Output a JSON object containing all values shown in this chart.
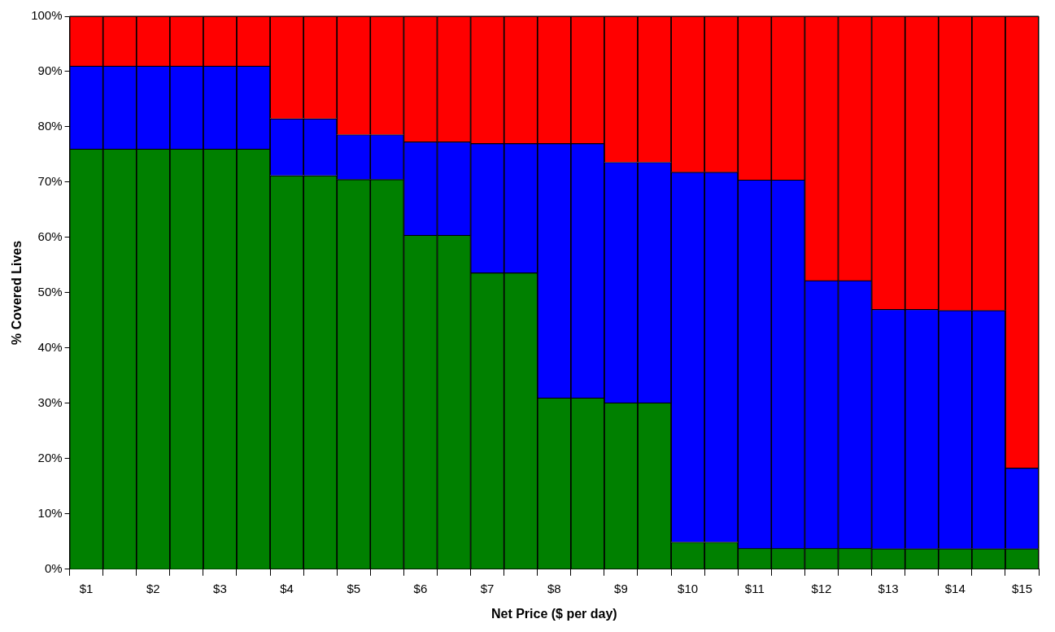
{
  "chart_data": {
    "type": "bar",
    "stacked": true,
    "xlabel": "Net Price ($ per day)",
    "ylabel": "% Covered Lives",
    "categories": [
      "$1",
      null,
      "$2",
      null,
      "$3",
      null,
      "$4",
      null,
      "$5",
      null,
      "$6",
      null,
      "$7",
      null,
      "$8",
      null,
      "$9",
      null,
      "$10",
      null,
      "$11",
      null,
      "$12",
      null,
      "$13",
      null,
      "$14",
      null,
      "$15"
    ],
    "series": [
      {
        "color": "#008000",
        "values": [
          76,
          76,
          76,
          76,
          76,
          76,
          71.2,
          71.2,
          70.5,
          70.5,
          60.4,
          60.4,
          53.6,
          53.6,
          31.0,
          31.0,
          30.1,
          30.1,
          4.9,
          4.9,
          3.8,
          3.8,
          3.8,
          3.8,
          3.7,
          3.7,
          3.7,
          3.7,
          3.7
        ]
      },
      {
        "color": "#0000ff",
        "values": [
          15,
          15,
          15,
          15,
          15,
          15,
          10.3,
          10.3,
          8.1,
          8.1,
          16.9,
          16.9,
          23.4,
          23.4,
          46.0,
          46.0,
          43.5,
          43.5,
          66.9,
          66.9,
          66.6,
          66.6,
          48.4,
          48.4,
          43.3,
          43.3,
          43.1,
          43.1,
          14.6
        ]
      },
      {
        "color": "#ff0000",
        "values": [
          9,
          9,
          9,
          9,
          9,
          9,
          18.5,
          18.5,
          21.4,
          21.4,
          22.7,
          22.7,
          23.0,
          23.0,
          23.0,
          23.0,
          26.4,
          26.4,
          28.2,
          28.2,
          29.6,
          29.6,
          47.8,
          47.8,
          53.0,
          53.0,
          53.2,
          53.2,
          81.7
        ]
      }
    ],
    "ylim": [
      0,
      100
    ],
    "yticks": [
      {
        "value": 0,
        "label": "0%"
      },
      {
        "value": 10,
        "label": "10%"
      },
      {
        "value": 20,
        "label": "20%"
      },
      {
        "value": 30,
        "label": "30%"
      },
      {
        "value": 40,
        "label": "40%"
      },
      {
        "value": 50,
        "label": "50%"
      },
      {
        "value": 60,
        "label": "60%"
      },
      {
        "value": 70,
        "label": "70%"
      },
      {
        "value": 80,
        "label": "80%"
      },
      {
        "value": 90,
        "label": "90%"
      },
      {
        "value": 100,
        "label": "100%"
      }
    ],
    "grid": false,
    "legend": false
  }
}
